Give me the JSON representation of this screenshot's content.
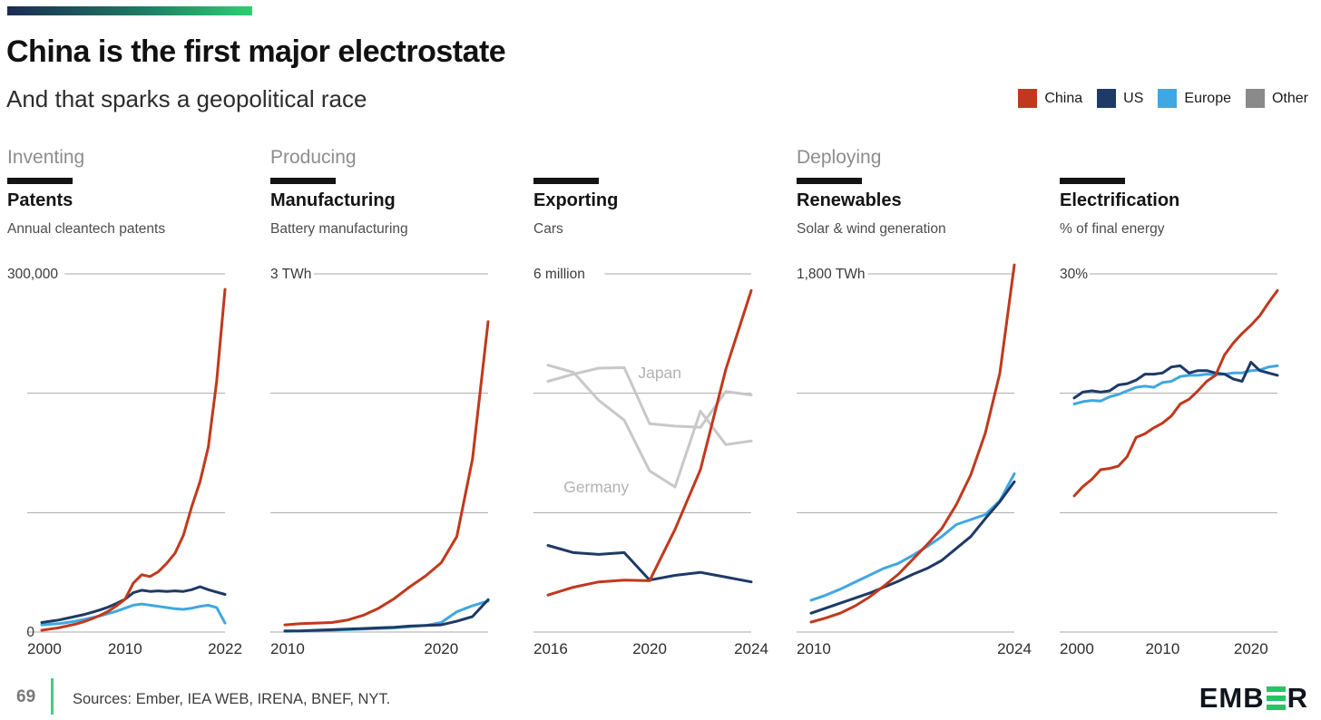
{
  "header": {
    "title": "China is the first major electrostate",
    "subtitle": "And that sparks a geopolitical race"
  },
  "legend": {
    "items": [
      {
        "label": "China",
        "color": "#c0391d"
      },
      {
        "label": "US",
        "color": "#1e3a66"
      },
      {
        "label": "Europe",
        "color": "#3fa7e1"
      },
      {
        "label": "Other",
        "color": "#8a8a8a"
      }
    ]
  },
  "colors": {
    "china": "#c0391d",
    "us": "#1e3a66",
    "europe": "#3fa7e1",
    "other": "#c8c8c8",
    "annotation": "#b2b2b2",
    "grid": "#aaaaaa",
    "axis_text": "#2d2d2d",
    "ylabel_text": "#3a3a3a"
  },
  "chart_data": [
    {
      "type": "line",
      "category": "Inventing",
      "title": "Patents",
      "subtitle": "Annual cleantech patents",
      "y_top_label": "300,000",
      "y_max": 300000,
      "y_zero_label": "0",
      "x_domain": [
        2000,
        2022
      ],
      "x_ticks": [
        2000,
        2010,
        2022
      ],
      "series": [
        {
          "name": "Europe",
          "color": "europe",
          "values": [
            6000,
            6500,
            7000,
            8000,
            9000,
            10500,
            12000,
            13500,
            15500,
            17500,
            20000,
            22500,
            23500,
            22500,
            21500,
            20500,
            19500,
            19000,
            20000,
            21500,
            22500,
            20500,
            7500
          ]
        },
        {
          "name": "US",
          "color": "us",
          "values": [
            8000,
            9000,
            10000,
            11500,
            13000,
            14500,
            16500,
            18500,
            21000,
            24000,
            27500,
            33000,
            35000,
            34000,
            34500,
            34000,
            34500,
            34000,
            35500,
            38000,
            35500,
            33500,
            31500
          ]
        },
        {
          "name": "China",
          "color": "china",
          "values": [
            1500,
            2500,
            3500,
            5000,
            6500,
            8500,
            11000,
            14000,
            17500,
            22000,
            27500,
            41000,
            48000,
            46500,
            50500,
            57500,
            66000,
            81000,
            105000,
            126000,
            155000,
            210000,
            287000
          ]
        }
      ],
      "annotations": []
    },
    {
      "type": "line",
      "category": "Producing",
      "title": "Manufacturing",
      "subtitle": "Battery manufacturing",
      "y_top_label": "3 TWh",
      "y_max": 3,
      "y_zero_label": "",
      "x_domain": [
        2010,
        2023
      ],
      "x_ticks": [
        2010,
        2020
      ],
      "series": [
        {
          "name": "Europe",
          "color": "europe",
          "values": [
            0.005,
            0.008,
            0.01,
            0.015,
            0.02,
            0.025,
            0.03,
            0.035,
            0.045,
            0.055,
            0.08,
            0.17,
            0.22,
            0.26
          ]
        },
        {
          "name": "US",
          "color": "us",
          "values": [
            0.01,
            0.01,
            0.015,
            0.02,
            0.025,
            0.03,
            0.035,
            0.04,
            0.05,
            0.055,
            0.06,
            0.09,
            0.13,
            0.27
          ]
        },
        {
          "name": "China",
          "color": "china",
          "values": [
            0.06,
            0.07,
            0.075,
            0.08,
            0.1,
            0.14,
            0.2,
            0.28,
            0.38,
            0.47,
            0.58,
            0.8,
            1.45,
            2.6
          ]
        }
      ],
      "annotations": []
    },
    {
      "type": "line",
      "category": "",
      "title": "Exporting",
      "subtitle": "Cars",
      "y_top_label": "6 million",
      "y_max": 6,
      "y_zero_label": "",
      "x_domain": [
        2016,
        2024
      ],
      "x_ticks": [
        2016,
        2020,
        2024
      ],
      "series": [
        {
          "name": "Japan",
          "color": "other",
          "values": [
            4.2,
            4.32,
            4.42,
            4.43,
            3.49,
            3.45,
            3.43,
            4.03,
            3.97
          ]
        },
        {
          "name": "Germany",
          "color": "other",
          "values": [
            4.47,
            4.35,
            3.88,
            3.55,
            2.7,
            2.43,
            3.7,
            3.14,
            3.2
          ]
        },
        {
          "name": "US",
          "color": "us",
          "values": [
            1.45,
            1.33,
            1.3,
            1.33,
            0.87,
            0.95,
            1.0,
            0.92,
            0.84
          ]
        },
        {
          "name": "China",
          "color": "china",
          "values": [
            0.62,
            0.75,
            0.84,
            0.87,
            0.86,
            1.72,
            2.72,
            4.4,
            5.72
          ]
        }
      ],
      "annotations": [
        {
          "text": "Japan",
          "year": 2020.4,
          "value": 4.25
        },
        {
          "text": "Germany",
          "year": 2017.9,
          "value": 2.34
        }
      ]
    },
    {
      "type": "line",
      "category": "Deploying",
      "title": "Renewables",
      "subtitle": "Solar & wind generation",
      "y_top_label": "1,800 TWh",
      "y_max": 1800,
      "y_zero_label": "",
      "x_domain": [
        2010,
        2024
      ],
      "x_ticks": [
        2010,
        2024
      ],
      "series": [
        {
          "name": "Europe",
          "color": "europe",
          "values": [
            160,
            185,
            215,
            250,
            285,
            320,
            345,
            385,
            430,
            480,
            540,
            565,
            590,
            660,
            795
          ]
        },
        {
          "name": "US",
          "color": "us",
          "values": [
            95,
            120,
            145,
            170,
            195,
            225,
            255,
            290,
            320,
            360,
            420,
            480,
            570,
            655,
            755
          ]
        },
        {
          "name": "China",
          "color": "china",
          "values": [
            50,
            70,
            95,
            130,
            175,
            230,
            290,
            365,
            440,
            520,
            640,
            790,
            1000,
            1300,
            1845
          ]
        }
      ],
      "annotations": []
    },
    {
      "type": "line",
      "category": "",
      "title": "Electrification",
      "subtitle": "% of final energy",
      "y_top_label": "30%",
      "y_max": 30,
      "y_zero_label": "",
      "x_domain": [
        2000,
        2023
      ],
      "x_ticks": [
        2000,
        2010,
        2020
      ],
      "series": [
        {
          "name": "Europe",
          "color": "europe",
          "values": [
            19.1,
            19.3,
            19.4,
            19.35,
            19.7,
            19.9,
            20.2,
            20.5,
            20.6,
            20.5,
            20.9,
            21.0,
            21.4,
            21.5,
            21.5,
            21.6,
            21.55,
            21.6,
            21.7,
            21.7,
            21.9,
            21.95,
            22.2,
            22.3
          ]
        },
        {
          "name": "US",
          "color": "us",
          "values": [
            19.6,
            20.1,
            20.2,
            20.1,
            20.2,
            20.7,
            20.8,
            21.1,
            21.6,
            21.6,
            21.7,
            22.2,
            22.3,
            21.7,
            21.9,
            21.9,
            21.7,
            21.6,
            21.2,
            21.0,
            22.6,
            21.9,
            21.7,
            21.5
          ]
        },
        {
          "name": "China",
          "color": "china",
          "values": [
            11.4,
            12.2,
            12.8,
            13.6,
            13.7,
            13.9,
            14.7,
            16.3,
            16.6,
            17.1,
            17.5,
            18.1,
            19.1,
            19.5,
            20.2,
            21.0,
            21.5,
            23.2,
            24.2,
            25.0,
            25.7,
            26.5,
            27.6,
            28.6
          ]
        }
      ],
      "annotations": []
    }
  ],
  "footer": {
    "page_number": "69",
    "sources": "Sources: Ember, IEA WEB, IRENA, BNEF, NYT.",
    "logo_text_left": "EMB",
    "logo_text_right": "R"
  }
}
